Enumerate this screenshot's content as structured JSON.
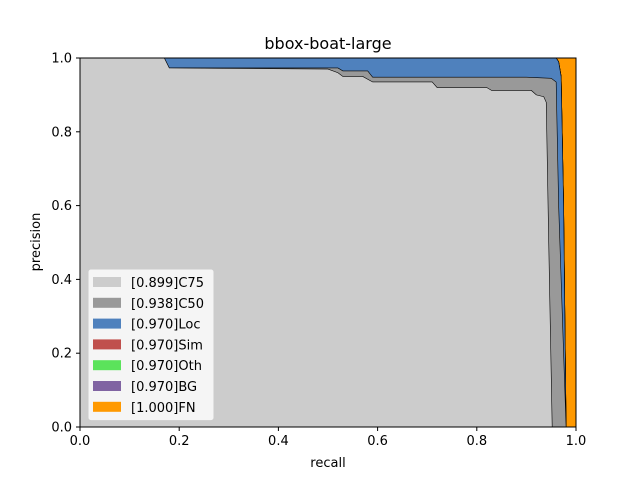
{
  "chart_data": {
    "type": "area",
    "title": "bbox-boat-large",
    "xlabel": "recall",
    "ylabel": "precision",
    "xlim": [
      0.0,
      1.0
    ],
    "ylim": [
      0.0,
      1.0
    ],
    "xticks": [
      "0.0",
      "0.2",
      "0.4",
      "0.6",
      "0.8",
      "1.0"
    ],
    "yticks": [
      "0.0",
      "0.2",
      "0.4",
      "0.6",
      "0.8",
      "1.0"
    ],
    "grid": false,
    "legend_position": "lower-left",
    "series": [
      {
        "name": "[1.000]FN",
        "color": "#ff9900",
        "points": [
          [
            0,
            1
          ],
          [
            1.0,
            1
          ],
          [
            1.0,
            0
          ]
        ]
      },
      {
        "name": "[0.970]BG",
        "color": "#8064a2",
        "points": [
          [
            0,
            1
          ],
          [
            0.96,
            1
          ],
          [
            0.965,
            0.99
          ],
          [
            0.97,
            0.95
          ],
          [
            0.975,
            0.6
          ],
          [
            0.98,
            0
          ]
        ]
      },
      {
        "name": "[0.970]Oth",
        "color": "#5be35b",
        "points": [
          [
            0,
            1
          ],
          [
            0.96,
            1
          ],
          [
            0.965,
            0.99
          ],
          [
            0.97,
            0.95
          ],
          [
            0.975,
            0.6
          ],
          [
            0.98,
            0
          ]
        ]
      },
      {
        "name": "[0.970]Sim",
        "color": "#c0504d",
        "points": [
          [
            0,
            1
          ],
          [
            0.96,
            1
          ],
          [
            0.965,
            0.99
          ],
          [
            0.97,
            0.95
          ],
          [
            0.975,
            0.6
          ],
          [
            0.98,
            0
          ]
        ]
      },
      {
        "name": "[0.970]Loc",
        "color": "#4f81bd",
        "points": [
          [
            0,
            1
          ],
          [
            0.96,
            1
          ],
          [
            0.965,
            0.99
          ],
          [
            0.97,
            0.95
          ],
          [
            0.975,
            0.6
          ],
          [
            0.98,
            0
          ]
        ]
      },
      {
        "name": "[0.938]C50",
        "color": "#999999",
        "points": [
          [
            0,
            1
          ],
          [
            0.17,
            1
          ],
          [
            0.18,
            0.973
          ],
          [
            0.52,
            0.973
          ],
          [
            0.53,
            0.965
          ],
          [
            0.58,
            0.965
          ],
          [
            0.59,
            0.948
          ],
          [
            0.9,
            0.948
          ],
          [
            0.95,
            0.945
          ],
          [
            0.96,
            0.935
          ],
          [
            0.965,
            0.6
          ],
          [
            0.98,
            0
          ]
        ]
      },
      {
        "name": "[0.899]C75",
        "color": "#cccccc",
        "points": [
          [
            0,
            1
          ],
          [
            0.17,
            1
          ],
          [
            0.18,
            0.973
          ],
          [
            0.5,
            0.97
          ],
          [
            0.52,
            0.96
          ],
          [
            0.53,
            0.95
          ],
          [
            0.57,
            0.95
          ],
          [
            0.59,
            0.935
          ],
          [
            0.71,
            0.935
          ],
          [
            0.72,
            0.92
          ],
          [
            0.82,
            0.92
          ],
          [
            0.83,
            0.912
          ],
          [
            0.91,
            0.912
          ],
          [
            0.92,
            0.9
          ],
          [
            0.935,
            0.895
          ],
          [
            0.94,
            0.88
          ],
          [
            0.945,
            0.5
          ],
          [
            0.952,
            0
          ]
        ]
      }
    ]
  }
}
